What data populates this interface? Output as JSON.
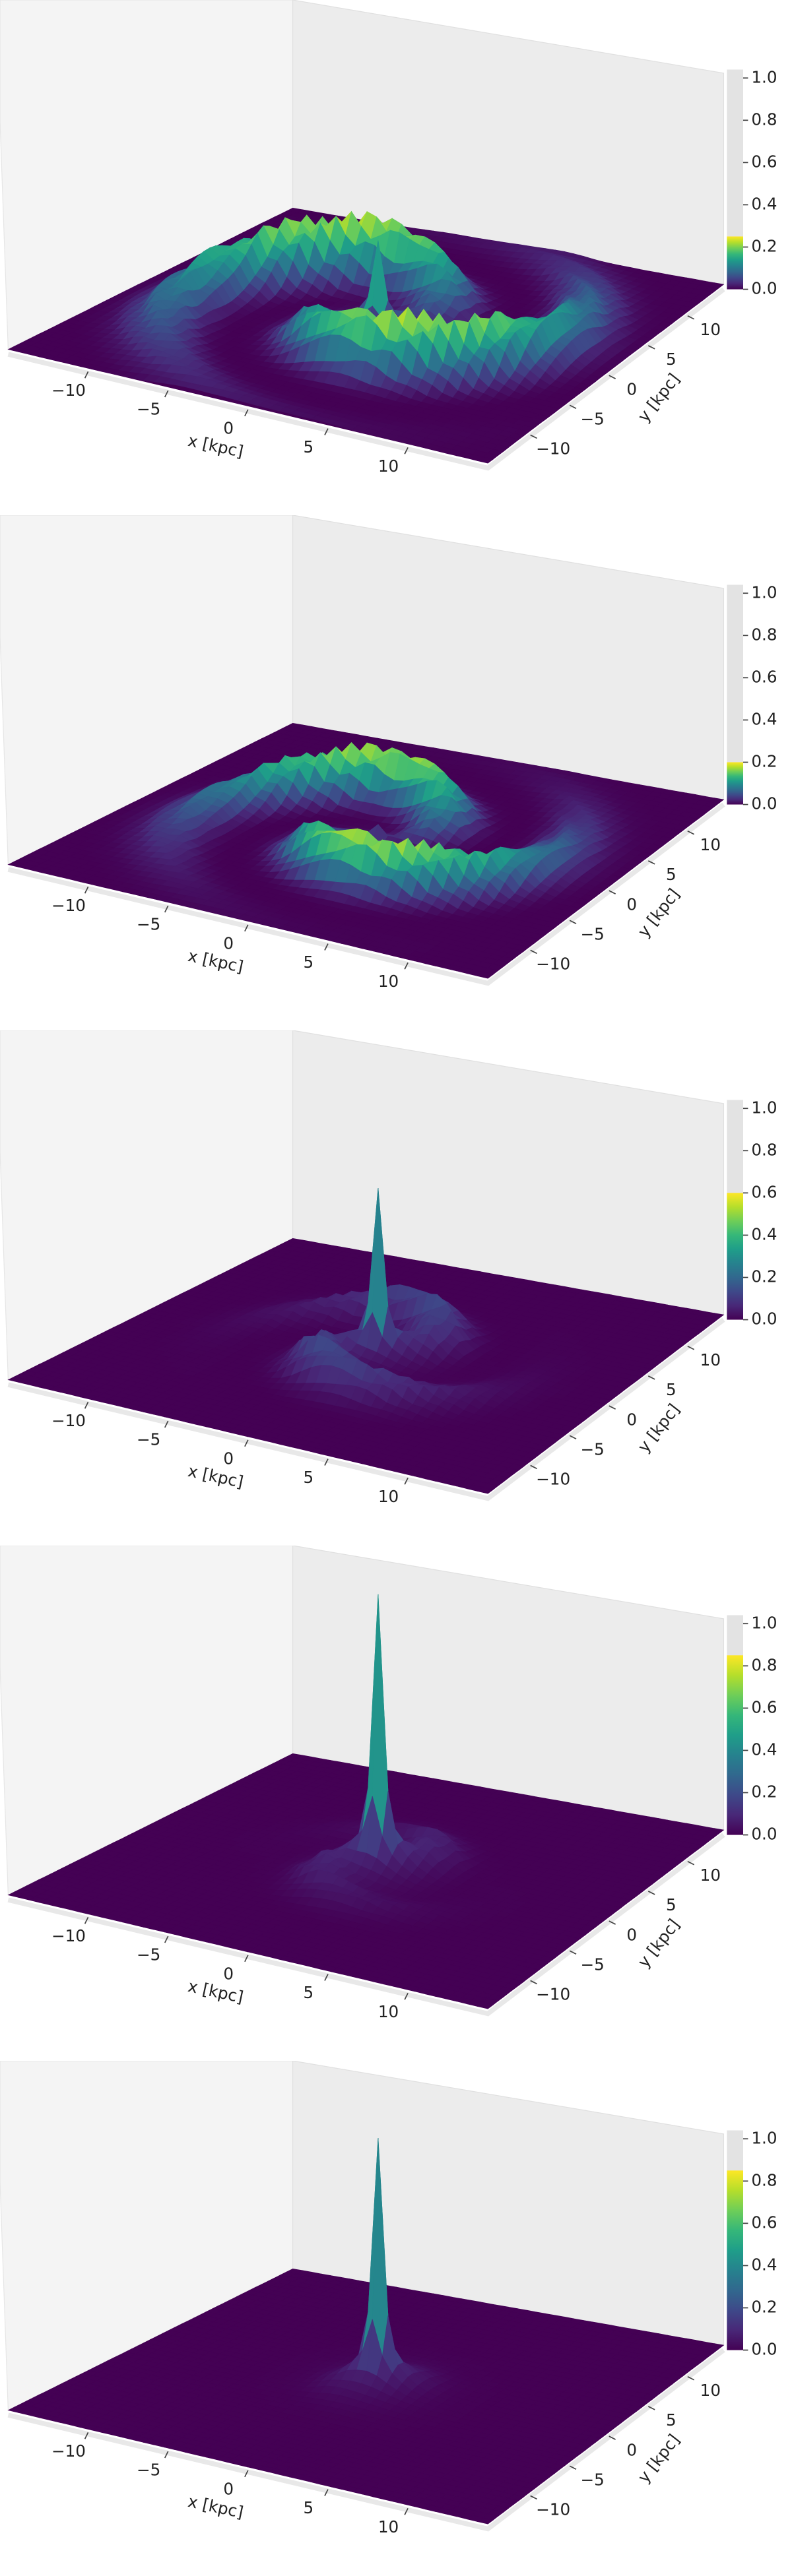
{
  "chart_data": [
    {
      "type": "surface",
      "xlabel": "x [kpc]",
      "ylabel": "y [kpc]",
      "xlim": [
        -15,
        15
      ],
      "ylim": [
        -15,
        15
      ],
      "zlim": [
        0,
        1.04
      ],
      "xticks": [
        {
          "value": -10,
          "label": "−10"
        },
        {
          "value": -5,
          "label": "−5"
        },
        0,
        5,
        10
      ],
      "yticks": [
        {
          "value": -10,
          "label": "−10"
        },
        {
          "value": -5,
          "label": "−5"
        },
        0,
        5,
        10
      ],
      "zticks": [
        {
          "value": 0,
          "label": "0.0"
        },
        {
          "value": 0.2,
          "label": "0.2"
        },
        {
          "value": 0.4,
          "label": "0.4"
        },
        {
          "value": 0.6,
          "label": "0.6"
        },
        {
          "value": 0.8,
          "label": "0.8"
        },
        {
          "value": 1,
          "label": "1.0"
        }
      ],
      "clim": [
        0,
        0.25
      ],
      "peak": 0.3,
      "arm_height": 0.25,
      "arm_radius": 8
    },
    {
      "type": "surface",
      "xlabel": "x [kpc]",
      "ylabel": "y [kpc]",
      "xlim": [
        -15,
        15
      ],
      "ylim": [
        -15,
        15
      ],
      "zlim": [
        0,
        1.04
      ],
      "xticks": [
        {
          "value": -10,
          "label": "−10"
        },
        {
          "value": -5,
          "label": "−5"
        },
        0,
        5,
        10
      ],
      "yticks": [
        {
          "value": -10,
          "label": "−10"
        },
        {
          "value": -5,
          "label": "−5"
        },
        0,
        5,
        10
      ],
      "zticks": [
        {
          "value": 0,
          "label": "0.0"
        },
        {
          "value": 0.2,
          "label": "0.2"
        },
        {
          "value": 0.4,
          "label": "0.4"
        },
        {
          "value": 0.6,
          "label": "0.6"
        },
        {
          "value": 0.8,
          "label": "0.8"
        },
        {
          "value": 1,
          "label": "1.0"
        }
      ],
      "clim": [
        0,
        0.2
      ],
      "peak": 0.05,
      "arm_height": 0.2,
      "arm_radius": 7
    },
    {
      "type": "surface",
      "xlabel": "x [kpc]",
      "ylabel": "y [kpc]",
      "xlim": [
        -15,
        15
      ],
      "ylim": [
        -15,
        15
      ],
      "zlim": [
        0,
        1.04
      ],
      "xticks": [
        {
          "value": -10,
          "label": "−10"
        },
        {
          "value": -5,
          "label": "−5"
        },
        0,
        5,
        10
      ],
      "yticks": [
        {
          "value": -10,
          "label": "−10"
        },
        {
          "value": -5,
          "label": "−5"
        },
        0,
        5,
        10
      ],
      "zticks": [
        {
          "value": 0,
          "label": "0.0"
        },
        {
          "value": 0.2,
          "label": "0.2"
        },
        {
          "value": 0.4,
          "label": "0.4"
        },
        {
          "value": 0.6,
          "label": "0.6"
        },
        {
          "value": 0.8,
          "label": "0.8"
        },
        {
          "value": 1,
          "label": "1.0"
        }
      ],
      "clim": [
        0,
        0.6
      ],
      "peak": 0.6,
      "arm_height": 0.15,
      "arm_radius": 5
    },
    {
      "type": "surface",
      "xlabel": "x [kpc]",
      "ylabel": "y [kpc]",
      "xlim": [
        -15,
        15
      ],
      "ylim": [
        -15,
        15
      ],
      "zlim": [
        0,
        1.04
      ],
      "xticks": [
        {
          "value": -10,
          "label": "−10"
        },
        {
          "value": -5,
          "label": "−5"
        },
        0,
        5,
        10
      ],
      "yticks": [
        {
          "value": -10,
          "label": "−10"
        },
        {
          "value": -5,
          "label": "−5"
        },
        0,
        5,
        10
      ],
      "zticks": [
        {
          "value": 0,
          "label": "0.0"
        },
        {
          "value": 0.2,
          "label": "0.2"
        },
        {
          "value": 0.4,
          "label": "0.4"
        },
        {
          "value": 0.6,
          "label": "0.6"
        },
        {
          "value": 0.8,
          "label": "0.8"
        },
        {
          "value": 1,
          "label": "1.0"
        }
      ],
      "clim": [
        0,
        0.85
      ],
      "peak": 1.0,
      "arm_height": 0.08,
      "arm_radius": 4
    },
    {
      "type": "surface",
      "xlabel": "x [kpc]",
      "ylabel": "y [kpc]",
      "xlim": [
        -15,
        15
      ],
      "ylim": [
        -15,
        15
      ],
      "zlim": [
        0,
        1.04
      ],
      "xticks": [
        {
          "value": -10,
          "label": "−10"
        },
        {
          "value": -5,
          "label": "−5"
        },
        0,
        5,
        10
      ],
      "yticks": [
        {
          "value": -10,
          "label": "−10"
        },
        {
          "value": -5,
          "label": "−5"
        },
        0,
        5,
        10
      ],
      "zticks": [
        {
          "value": 0,
          "label": "0.0"
        },
        {
          "value": 0.2,
          "label": "0.2"
        },
        {
          "value": 0.4,
          "label": "0.4"
        },
        {
          "value": 0.6,
          "label": "0.6"
        },
        {
          "value": 0.8,
          "label": "0.8"
        },
        {
          "value": 1,
          "label": "1.0"
        }
      ],
      "clim": [
        0,
        0.85
      ],
      "peak": 0.9,
      "arm_height": 0.02,
      "arm_radius": 2
    }
  ]
}
